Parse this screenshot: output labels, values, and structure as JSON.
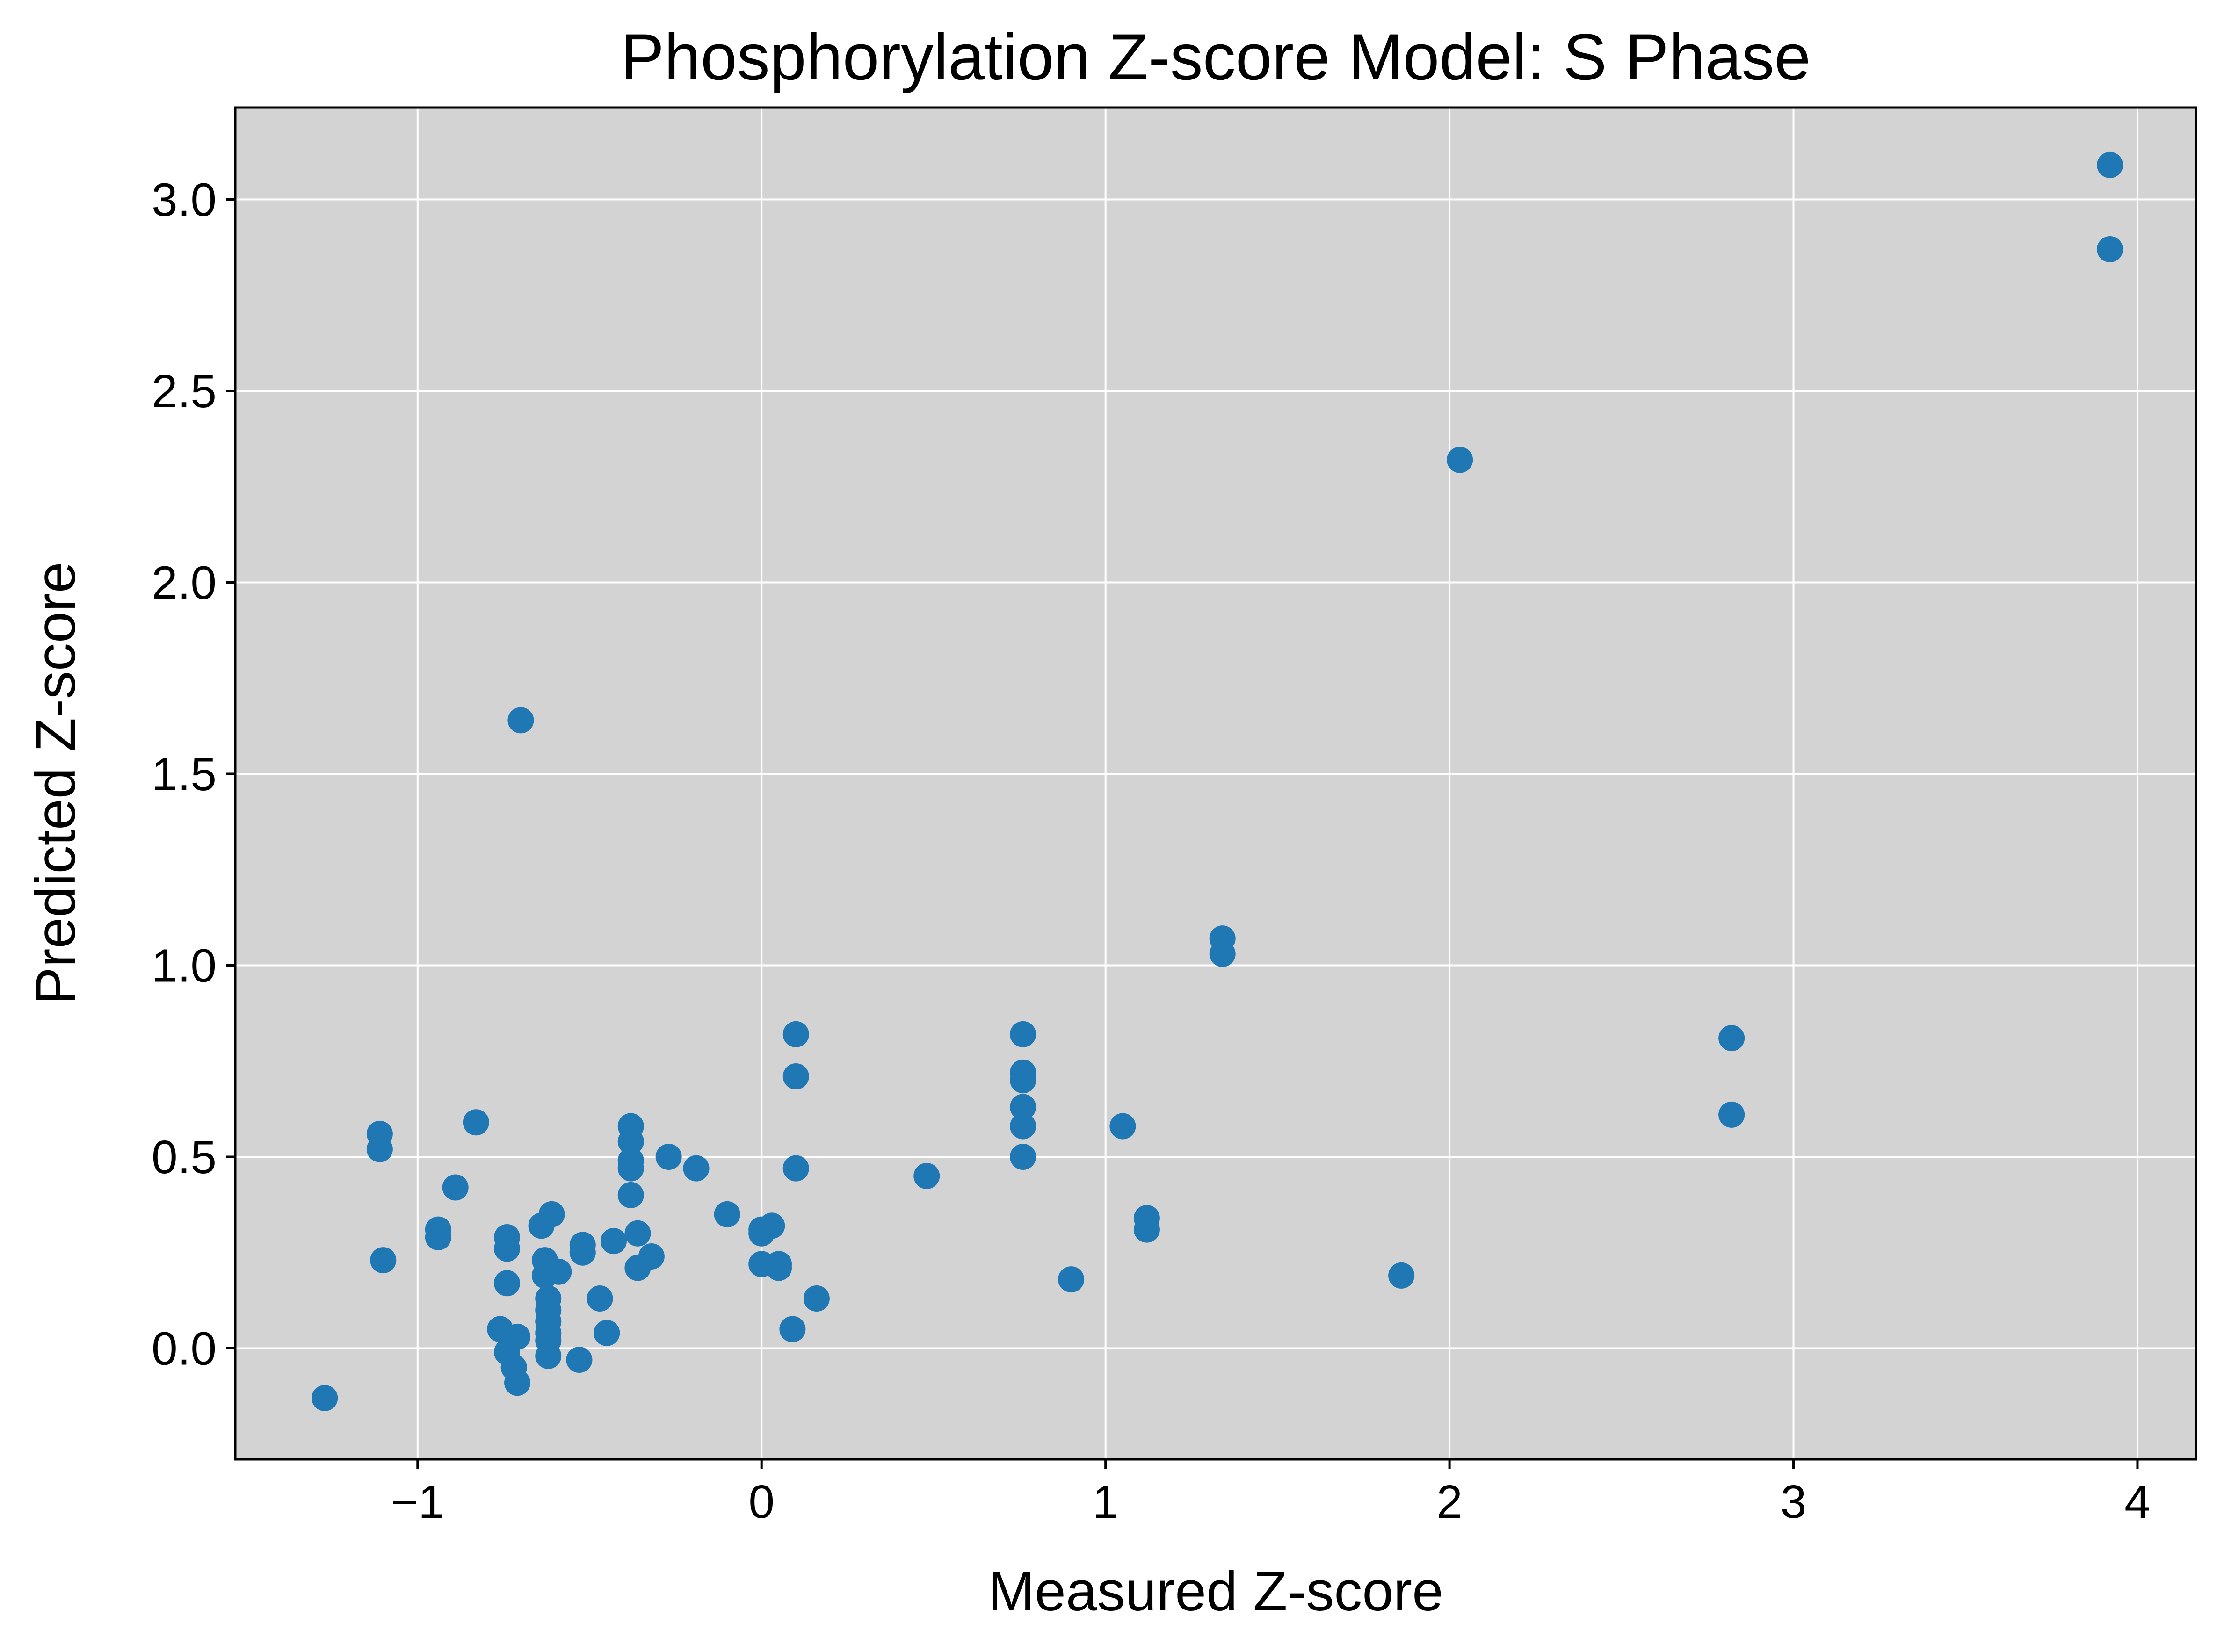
{
  "chart_data": {
    "type": "scatter",
    "title": "Phosphorylation Z-score Model: S Phase",
    "xlabel": "Measured Z-score",
    "ylabel": "Predicted Z-score",
    "xlim": [
      -1.53,
      4.17
    ],
    "ylim": [
      -0.29,
      3.24
    ],
    "x_ticks": [
      -1,
      0,
      1,
      2,
      3,
      4
    ],
    "x_tick_labels": [
      "−1",
      "0",
      "1",
      "2",
      "3",
      "4"
    ],
    "y_ticks": [
      0.0,
      0.5,
      1.0,
      1.5,
      2.0,
      2.5,
      3.0
    ],
    "y_tick_labels": [
      "0.0",
      "0.5",
      "1.0",
      "1.5",
      "2.0",
      "2.5",
      "3.0"
    ],
    "grid": true,
    "background_color": "#d3d3d3",
    "point_color": "#1f77b4",
    "series": [
      {
        "points": [
          {
            "x": -1.27,
            "y": -0.13
          },
          {
            "x": -1.11,
            "y": 0.56
          },
          {
            "x": -1.11,
            "y": 0.52
          },
          {
            "x": -1.1,
            "y": 0.23
          },
          {
            "x": -0.94,
            "y": 0.31
          },
          {
            "x": -0.94,
            "y": 0.29
          },
          {
            "x": -0.89,
            "y": 0.42
          },
          {
            "x": -0.83,
            "y": 0.59
          },
          {
            "x": -0.76,
            "y": 0.05
          },
          {
            "x": -0.74,
            "y": 0.29
          },
          {
            "x": -0.74,
            "y": 0.26
          },
          {
            "x": -0.74,
            "y": 0.17
          },
          {
            "x": -0.74,
            "y": -0.01
          },
          {
            "x": -0.72,
            "y": -0.05
          },
          {
            "x": -0.71,
            "y": -0.09
          },
          {
            "x": -0.71,
            "y": 0.03
          },
          {
            "x": -0.7,
            "y": 1.64
          },
          {
            "x": -0.64,
            "y": 0.32
          },
          {
            "x": -0.63,
            "y": 0.23
          },
          {
            "x": -0.63,
            "y": 0.19
          },
          {
            "x": -0.62,
            "y": 0.13
          },
          {
            "x": -0.62,
            "y": 0.1
          },
          {
            "x": -0.62,
            "y": 0.07
          },
          {
            "x": -0.62,
            "y": 0.04
          },
          {
            "x": -0.62,
            "y": 0.02
          },
          {
            "x": -0.62,
            "y": -0.02
          },
          {
            "x": -0.61,
            "y": 0.35
          },
          {
            "x": -0.59,
            "y": 0.2
          },
          {
            "x": -0.53,
            "y": -0.03
          },
          {
            "x": -0.52,
            "y": 0.27
          },
          {
            "x": -0.52,
            "y": 0.25
          },
          {
            "x": -0.47,
            "y": 0.13
          },
          {
            "x": -0.45,
            "y": 0.04
          },
          {
            "x": -0.43,
            "y": 0.28
          },
          {
            "x": -0.38,
            "y": 0.58
          },
          {
            "x": -0.38,
            "y": 0.54
          },
          {
            "x": -0.38,
            "y": 0.49
          },
          {
            "x": -0.38,
            "y": 0.47
          },
          {
            "x": -0.38,
            "y": 0.4
          },
          {
            "x": -0.36,
            "y": 0.3
          },
          {
            "x": -0.36,
            "y": 0.21
          },
          {
            "x": -0.32,
            "y": 0.24
          },
          {
            "x": -0.27,
            "y": 0.5
          },
          {
            "x": -0.19,
            "y": 0.47
          },
          {
            "x": -0.1,
            "y": 0.35
          },
          {
            "x": 0.0,
            "y": 0.31
          },
          {
            "x": 0.0,
            "y": 0.3
          },
          {
            "x": 0.0,
            "y": 0.22
          },
          {
            "x": 0.03,
            "y": 0.32
          },
          {
            "x": 0.05,
            "y": 0.22
          },
          {
            "x": 0.05,
            "y": 0.21
          },
          {
            "x": 0.09,
            "y": 0.05
          },
          {
            "x": 0.1,
            "y": 0.82
          },
          {
            "x": 0.1,
            "y": 0.71
          },
          {
            "x": 0.1,
            "y": 0.47
          },
          {
            "x": 0.16,
            "y": 0.13
          },
          {
            "x": 0.48,
            "y": 0.45
          },
          {
            "x": 0.76,
            "y": 0.82
          },
          {
            "x": 0.76,
            "y": 0.72
          },
          {
            "x": 0.76,
            "y": 0.7
          },
          {
            "x": 0.76,
            "y": 0.63
          },
          {
            "x": 0.76,
            "y": 0.58
          },
          {
            "x": 0.76,
            "y": 0.5
          },
          {
            "x": 0.9,
            "y": 0.18
          },
          {
            "x": 1.05,
            "y": 0.58
          },
          {
            "x": 1.12,
            "y": 0.34
          },
          {
            "x": 1.12,
            "y": 0.31
          },
          {
            "x": 1.34,
            "y": 1.07
          },
          {
            "x": 1.34,
            "y": 1.03
          },
          {
            "x": 1.86,
            "y": 0.19
          },
          {
            "x": 2.03,
            "y": 2.32
          },
          {
            "x": 2.82,
            "y": 0.81
          },
          {
            "x": 2.82,
            "y": 0.61
          },
          {
            "x": 3.92,
            "y": 3.09
          },
          {
            "x": 3.92,
            "y": 2.87
          }
        ]
      }
    ]
  }
}
